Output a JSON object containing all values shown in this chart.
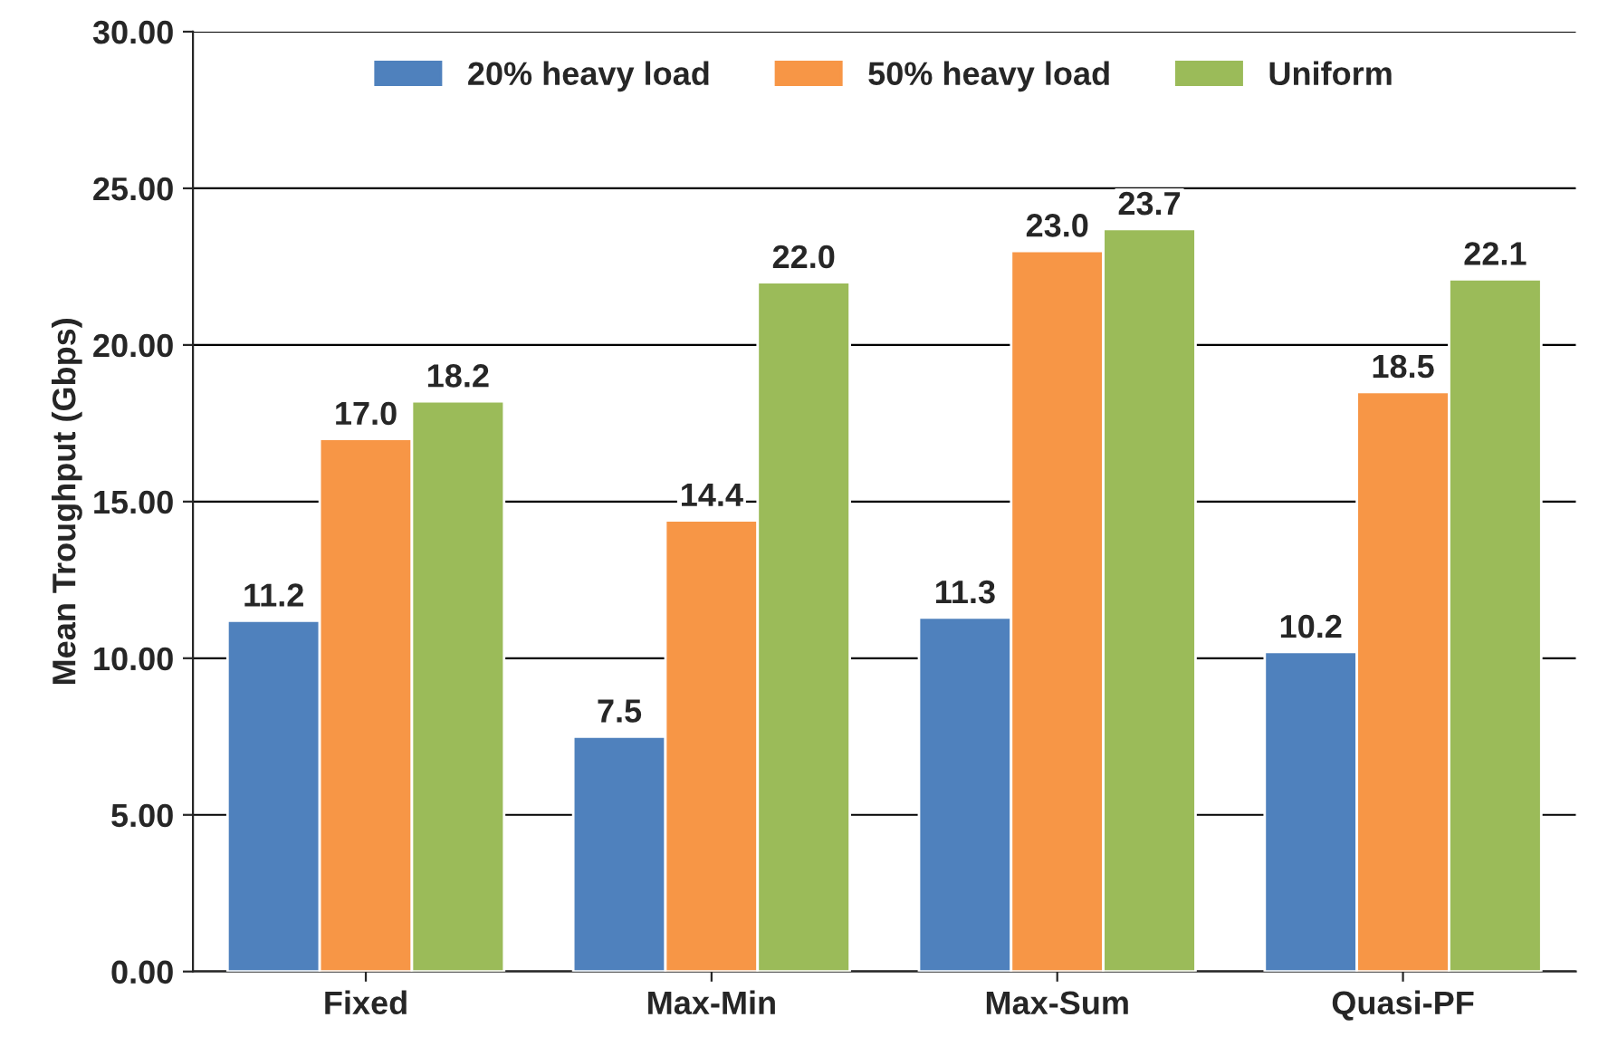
{
  "chart_data": {
    "type": "bar",
    "ylabel": "Mean Troughput (Gbps)",
    "categories": [
      "Fixed",
      "Max-Min",
      "Max-Sum",
      "Quasi-PF"
    ],
    "series": [
      {
        "name": "20% heavy load",
        "color": "#4f81bd",
        "values": [
          11.2,
          7.5,
          11.3,
          10.2
        ],
        "value_labels": [
          "11.2",
          "7.5",
          "11.3",
          "10.2"
        ]
      },
      {
        "name": "50% heavy load",
        "color": "#f79646",
        "values": [
          17.0,
          14.4,
          23.0,
          18.5
        ],
        "value_labels": [
          "17.0",
          "14.4",
          "23.0",
          "18.5"
        ]
      },
      {
        "name": "Uniform",
        "color": "#9bbb59",
        "values": [
          18.2,
          22.0,
          23.7,
          22.1
        ],
        "value_labels": [
          "18.2",
          "22.0",
          "23.7",
          "22.1"
        ]
      }
    ],
    "ylim": [
      0,
      30
    ],
    "yticks": [
      {
        "value": 0,
        "label": "0.00"
      },
      {
        "value": 5,
        "label": "5.00"
      },
      {
        "value": 10,
        "label": "10.00"
      },
      {
        "value": 15,
        "label": "15.00"
      },
      {
        "value": 20,
        "label": "20.00"
      },
      {
        "value": 25,
        "label": "25.00"
      },
      {
        "value": 30,
        "label": "30.00"
      }
    ],
    "grid": "y",
    "legend": "top"
  }
}
